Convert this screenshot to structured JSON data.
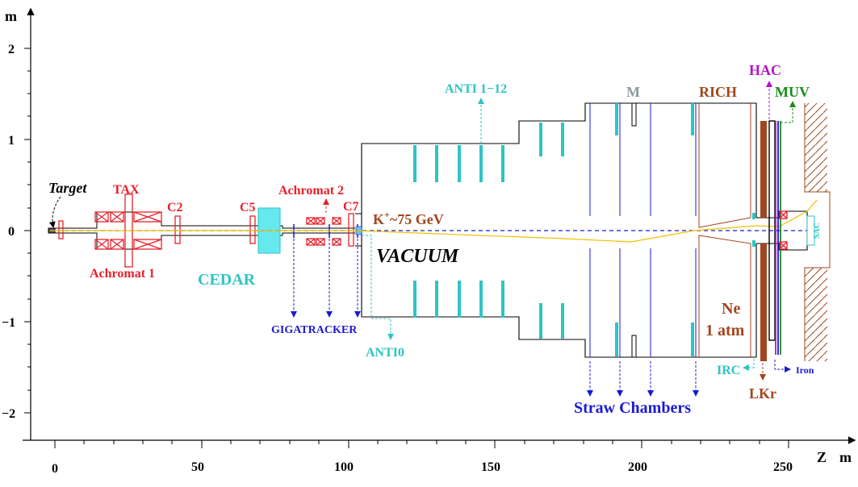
{
  "axes": {
    "y_unit": "m",
    "x_unit_z": "Z",
    "x_unit_m": "m",
    "y_ticks": [
      "2",
      "1",
      "0",
      "−1",
      "−2"
    ],
    "x_ticks": [
      "0",
      "50",
      "100",
      "150",
      "200",
      "250"
    ]
  },
  "labels": {
    "target": "Target",
    "tax": "TAX",
    "c2": "C2",
    "c5": "C5",
    "c7": "C7",
    "achromat1": "Achromat 1",
    "achromat2": "Achromat 2",
    "cedar": "CEDAR",
    "beam": "K",
    "beam_charge": "+",
    "beam_energy": "~75 GeV",
    "vacuum": "VACUUM",
    "gigatracker": "GIGATRACKER",
    "anti0": "ANTI0",
    "anti112": "ANTI 1−12",
    "m": "M",
    "rich": "RICH",
    "hac": "HAC",
    "muv": "MUV",
    "ne": "Ne",
    "atm": "1 atm",
    "straw": "Straw Chambers",
    "irc": "IRC",
    "lkr": "LKr",
    "iron": "Iron",
    "sac": "SAC"
  },
  "colors": {
    "red": "#e8202a",
    "blue": "#1a1ad6",
    "cyan": "#2ec4c4",
    "cedar_fill": "#66e8ef",
    "brown": "#a0461e",
    "magenta": "#b414c8",
    "green": "#1a8c1a",
    "gray": "#8c9b9b",
    "yellow": "#f0c000",
    "black": "#000000"
  }
}
